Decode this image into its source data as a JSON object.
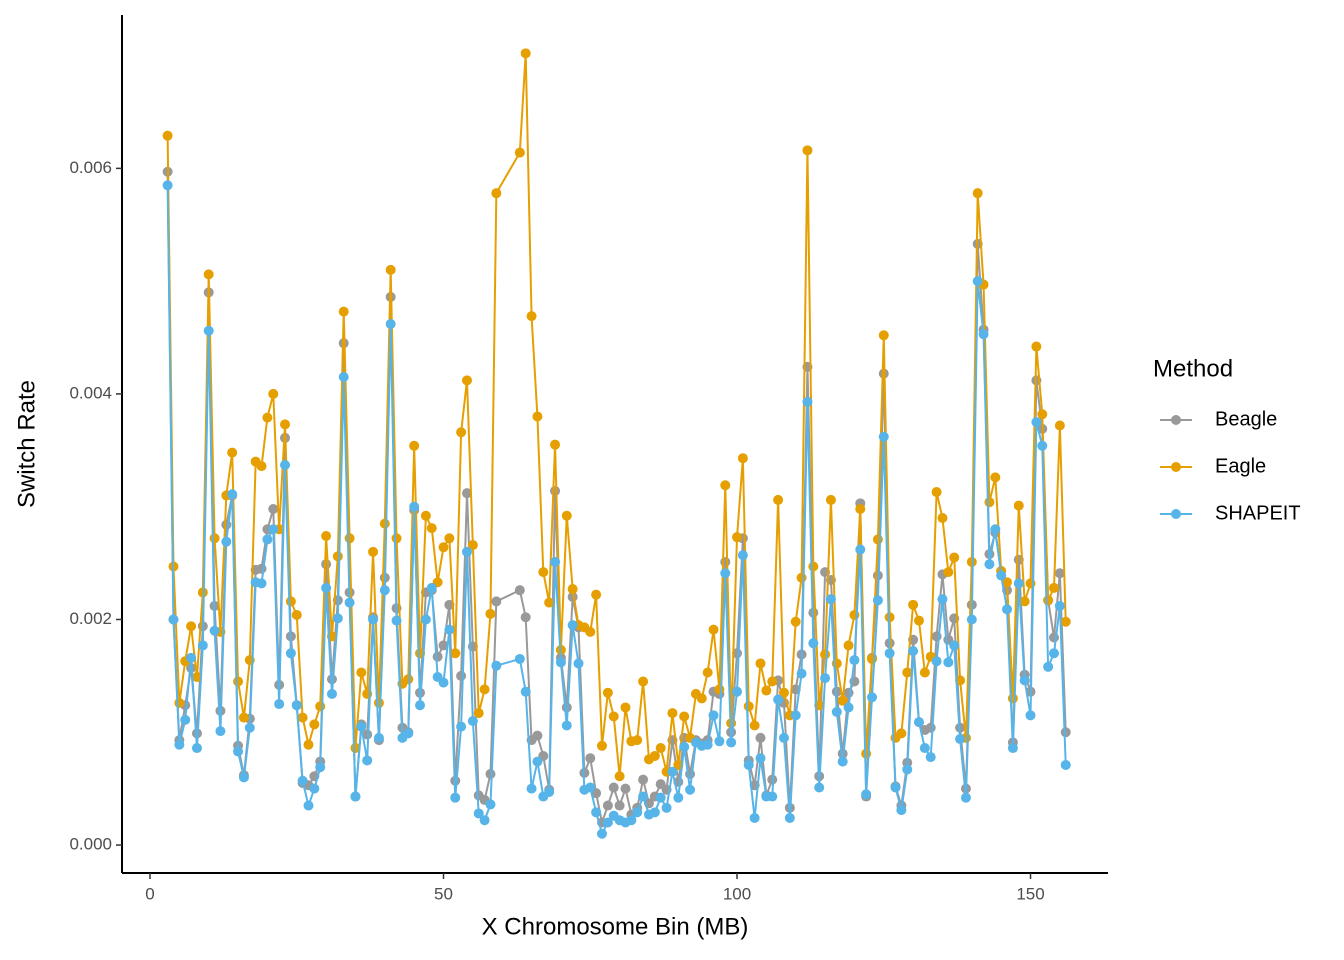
{
  "chart_data": {
    "type": "line",
    "x_label": "X Chromosome Bin (MB)",
    "y_label": "Switch Rate",
    "legend_title": "Method",
    "legend": "right",
    "xlim": [
      -4.77,
      163.2
    ],
    "ylim": [
      -0.000248,
      0.00736
    ],
    "xticks": [
      0,
      50,
      100,
      150
    ],
    "yticks": [
      {
        "value": 0,
        "label": "0.000"
      },
      0.002,
      0.004,
      0.006
    ],
    "grid": false,
    "x": [
      3,
      4,
      5,
      6,
      7,
      8,
      9,
      10,
      11,
      12,
      13,
      14,
      15,
      16,
      17,
      18,
      19,
      20,
      21,
      22,
      23,
      24,
      25,
      26,
      27,
      28,
      29,
      30,
      31,
      32,
      33,
      34,
      35,
      36,
      37,
      38,
      39,
      40,
      41,
      42,
      43,
      44,
      45,
      46,
      47,
      48,
      49,
      50,
      51,
      52,
      53,
      54,
      55,
      56,
      57,
      58,
      59,
      63,
      64,
      65,
      66,
      67,
      68,
      69,
      70,
      71,
      72,
      73,
      74,
      75,
      76,
      77,
      78,
      79,
      80,
      81,
      82,
      83,
      84,
      85,
      86,
      87,
      88,
      89,
      90,
      91,
      92,
      93,
      94,
      95,
      96,
      97,
      98,
      99,
      100,
      101,
      102,
      103,
      104,
      105,
      106,
      107,
      108,
      109,
      110,
      111,
      112,
      113,
      114,
      115,
      116,
      117,
      118,
      119,
      120,
      121,
      122,
      123,
      124,
      125,
      126,
      127,
      128,
      129,
      130,
      131,
      132,
      133,
      134,
      135,
      136,
      137,
      138,
      139,
      140,
      141,
      142,
      143,
      144,
      145,
      146,
      147,
      148,
      149,
      150,
      151,
      152,
      153,
      154,
      155,
      156
    ],
    "series": [
      {
        "name": "Beagle",
        "color": "#999999",
        "values": [
          0.00597,
          0.002,
          0.00093,
          0.00124,
          0.00157,
          0.00099,
          0.00194,
          0.0049,
          0.00212,
          0.00119,
          0.00284,
          0.0031,
          0.00088,
          0.00062,
          0.00112,
          0.00244,
          0.00245,
          0.0028,
          0.00298,
          0.00142,
          0.00361,
          0.00185,
          0.00124,
          0.00055,
          0.00053,
          0.00061,
          0.00074,
          0.00249,
          0.00147,
          0.00217,
          0.00445,
          0.00224,
          0.00043,
          0.00107,
          0.00098,
          0.00202,
          0.00093,
          0.00237,
          0.00486,
          0.0021,
          0.00104,
          0.001,
          0.00297,
          0.00135,
          0.00224,
          0.00226,
          0.00167,
          0.00177,
          0.00213,
          0.00057,
          0.0015,
          0.00312,
          0.00176,
          0.00044,
          0.0004,
          0.00063,
          0.00216,
          0.00226,
          0.00202,
          0.00093,
          0.00097,
          0.00079,
          0.00049,
          0.00314,
          0.00166,
          0.00122,
          0.0022,
          0.00193,
          0.00064,
          0.00077,
          0.00046,
          0.0002,
          0.00035,
          0.00051,
          0.00035,
          0.0005,
          0.00027,
          0.00033,
          0.00058,
          0.00037,
          0.00043,
          0.00054,
          0.00049,
          0.00093,
          0.00056,
          0.00095,
          0.00063,
          0.00093,
          0.0009,
          0.00093,
          0.00136,
          0.00134,
          0.00251,
          0.001,
          0.0017,
          0.00272,
          0.00075,
          0.00053,
          0.00095,
          0.00044,
          0.00058,
          0.00146,
          0.00126,
          0.00033,
          0.00138,
          0.00169,
          0.00424,
          0.00206,
          0.00061,
          0.00242,
          0.00235,
          0.00136,
          0.00081,
          0.00135,
          0.00145,
          0.00303,
          0.00043,
          0.00166,
          0.00239,
          0.00418,
          0.00179,
          0.00052,
          0.00035,
          0.00073,
          0.00182,
          0.00109,
          0.00102,
          0.00104,
          0.00185,
          0.0024,
          0.00182,
          0.00201,
          0.00104,
          0.0005,
          0.00213,
          0.00533,
          0.00457,
          0.00258,
          0.00277,
          0.00243,
          0.00226,
          0.00091,
          0.00253,
          0.00151,
          0.00136,
          0.00412,
          0.00369,
          0.00217,
          0.00184,
          0.00241,
          0.001
        ]
      },
      {
        "name": "Eagle",
        "color": "#E69F00",
        "values": [
          0.00629,
          0.00247,
          0.00126,
          0.00163,
          0.00194,
          0.00149,
          0.00224,
          0.00506,
          0.00272,
          0.00189,
          0.0031,
          0.00348,
          0.00145,
          0.00113,
          0.00164,
          0.0034,
          0.00336,
          0.00379,
          0.004,
          0.0028,
          0.00373,
          0.00216,
          0.00204,
          0.00113,
          0.00089,
          0.00107,
          0.00123,
          0.00274,
          0.00185,
          0.00256,
          0.00473,
          0.00272,
          0.00086,
          0.00153,
          0.00134,
          0.0026,
          0.00126,
          0.00285,
          0.0051,
          0.00272,
          0.00143,
          0.00147,
          0.00354,
          0.0017,
          0.00292,
          0.00281,
          0.00233,
          0.00264,
          0.00272,
          0.0017,
          0.00366,
          0.00412,
          0.00266,
          0.00117,
          0.00138,
          0.00205,
          0.00578,
          0.00614,
          0.00702,
          0.00469,
          0.0038,
          0.00242,
          0.00215,
          0.00355,
          0.00173,
          0.00292,
          0.00227,
          0.00195,
          0.00193,
          0.00189,
          0.00222,
          0.00088,
          0.00135,
          0.00114,
          0.00061,
          0.00122,
          0.00092,
          0.00093,
          0.00145,
          0.00076,
          0.00079,
          0.00086,
          0.00065,
          0.00117,
          0.00071,
          0.00114,
          0.00095,
          0.00134,
          0.0013,
          0.00153,
          0.00191,
          0.00138,
          0.00319,
          0.00108,
          0.00273,
          0.00343,
          0.00123,
          0.00106,
          0.00161,
          0.00137,
          0.00145,
          0.00306,
          0.00135,
          0.00115,
          0.00198,
          0.00237,
          0.00616,
          0.00247,
          0.00124,
          0.00169,
          0.00306,
          0.00161,
          0.00128,
          0.00177,
          0.00204,
          0.00298,
          0.00081,
          0.00165,
          0.00271,
          0.00452,
          0.00202,
          0.00095,
          0.00099,
          0.00153,
          0.00213,
          0.00199,
          0.00153,
          0.00167,
          0.00313,
          0.0029,
          0.00242,
          0.00255,
          0.00146,
          0.00095,
          0.00251,
          0.00578,
          0.00497,
          0.00304,
          0.00326,
          0.00243,
          0.00233,
          0.0013,
          0.00301,
          0.00216,
          0.00232,
          0.00442,
          0.00382,
          0.00217,
          0.00228,
          0.00372,
          0.00198
        ]
      },
      {
        "name": "SHAPEIT",
        "color": "#56B4E9",
        "values": [
          0.00585,
          0.002,
          0.00089,
          0.00111,
          0.00166,
          0.00086,
          0.00177,
          0.00456,
          0.0019,
          0.00101,
          0.00269,
          0.00311,
          0.00083,
          0.0006,
          0.00104,
          0.00233,
          0.00232,
          0.00271,
          0.0028,
          0.00125,
          0.00337,
          0.0017,
          0.00124,
          0.00057,
          0.00035,
          0.0005,
          0.00069,
          0.00228,
          0.00134,
          0.00201,
          0.00415,
          0.00215,
          0.00043,
          0.00105,
          0.00075,
          0.002,
          0.00095,
          0.00226,
          0.00462,
          0.00199,
          0.00095,
          0.00099,
          0.003,
          0.00124,
          0.002,
          0.00228,
          0.00149,
          0.00144,
          0.00191,
          0.00042,
          0.00105,
          0.0026,
          0.0011,
          0.00028,
          0.00022,
          0.00036,
          0.00159,
          0.00165,
          0.00136,
          0.0005,
          0.00074,
          0.00043,
          0.00047,
          0.00251,
          0.00162,
          0.00106,
          0.00195,
          0.00161,
          0.00049,
          0.00051,
          0.00029,
          0.0001,
          0.0002,
          0.00026,
          0.00022,
          0.0002,
          0.00022,
          0.00029,
          0.00043,
          0.00027,
          0.00029,
          0.00042,
          0.00033,
          0.00065,
          0.00042,
          0.00087,
          0.00049,
          0.00091,
          0.00088,
          0.00089,
          0.00115,
          0.00092,
          0.00241,
          0.00091,
          0.00136,
          0.00257,
          0.00071,
          0.00024,
          0.00077,
          0.00043,
          0.00043,
          0.00129,
          0.00095,
          0.00024,
          0.00115,
          0.00152,
          0.00393,
          0.00179,
          0.00051,
          0.00148,
          0.00218,
          0.00118,
          0.00074,
          0.00122,
          0.00164,
          0.00262,
          0.00045,
          0.00131,
          0.00217,
          0.00362,
          0.0017,
          0.00051,
          0.00031,
          0.00067,
          0.00172,
          0.00109,
          0.00086,
          0.00078,
          0.00163,
          0.00218,
          0.00162,
          0.00177,
          0.00094,
          0.00042,
          0.002,
          0.005,
          0.00453,
          0.00249,
          0.0028,
          0.00239,
          0.00209,
          0.00086,
          0.00232,
          0.00146,
          0.00115,
          0.00375,
          0.00354,
          0.00158,
          0.0017,
          0.00212,
          0.00071
        ]
      }
    ]
  }
}
